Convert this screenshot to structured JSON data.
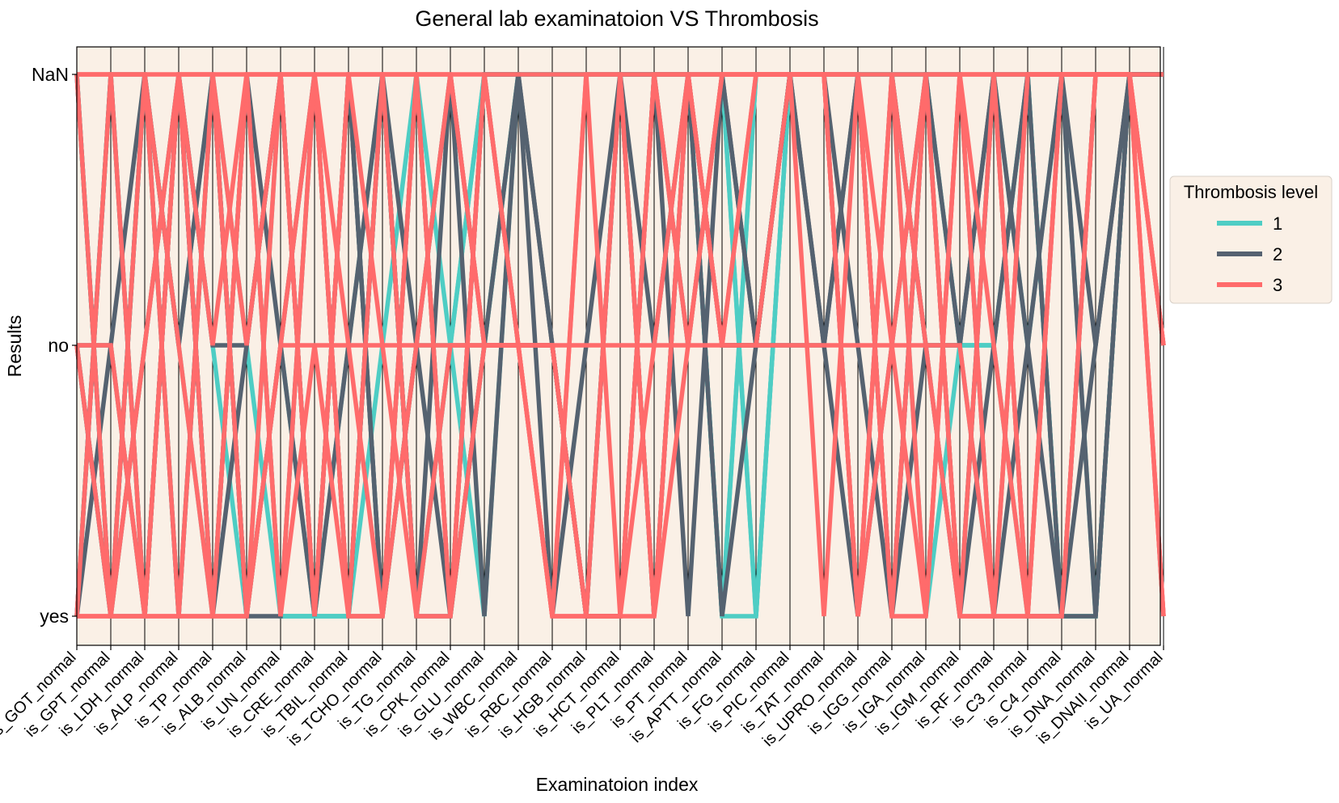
{
  "chart_data": {
    "type": "line",
    "subtype": "parallel-coordinates",
    "title": "General lab examinatoion VS Thrombosis",
    "xlabel": "Examinatoion index",
    "ylabel": "Results",
    "categories": [
      "is_GOT_normal",
      "is_GPT_normal",
      "is_LDH_normal",
      "is_ALP_normal",
      "is_TP_normal",
      "is_ALB_normal",
      "is_UN_normal",
      "is_CRE_normal",
      "is_TBIL_normal",
      "is_TCHO_normal",
      "is_TG_normal",
      "is_CPK_normal",
      "is_GLU_normal",
      "is_WBC_normal",
      "is_RBC_normal",
      "is_HGB_normal",
      "is_HCT_normal",
      "is_PLT_normal",
      "is_PT_normal",
      "is_APTT_normal",
      "is_FG_normal",
      "is_PIC_normal",
      "is_TAT_normal",
      "is_UPRO_normal",
      "is_IGG_normal",
      "is_IGA_normal",
      "is_IGM_normal",
      "is_RF_normal",
      "is_C3_normal",
      "is_C4_normal",
      "is_DNA_normal",
      "is_DNAII_normal",
      "is_UA_normal"
    ],
    "y_levels": [
      "yes",
      "no",
      "NaN"
    ],
    "legend": {
      "title": "Thrombosis level",
      "placement": "right"
    },
    "background_color": "#faf0e6",
    "grid": "vertical lines at each category",
    "series": [
      {
        "name": "1",
        "color": "#4ecdc4",
        "lines": [
          [
            2,
            0,
            2,
            1,
            0,
            2,
            0,
            0,
            0,
            1,
            2,
            0,
            1,
            2,
            2,
            2,
            2,
            2,
            2,
            0,
            0,
            2,
            2,
            2,
            2,
            2,
            1,
            0,
            2,
            0,
            0,
            2,
            2
          ],
          [
            0,
            2,
            0,
            2,
            1,
            0,
            2,
            0,
            0,
            0,
            2,
            1,
            2,
            2,
            2,
            2,
            2,
            2,
            2,
            2,
            0,
            2,
            2,
            2,
            2,
            2,
            1,
            1,
            2,
            0,
            0,
            2,
            2
          ],
          [
            1,
            0,
            2,
            0,
            2,
            1,
            0,
            0,
            1,
            2,
            0,
            1,
            0,
            2,
            2,
            2,
            2,
            0,
            2,
            0,
            2,
            2,
            2,
            2,
            2,
            1,
            1,
            1,
            0,
            2,
            0,
            2,
            2
          ],
          [
            0,
            2,
            2,
            1,
            2,
            0,
            1,
            0,
            0,
            2,
            0,
            1,
            1,
            2,
            2,
            2,
            2,
            0,
            2,
            2,
            0,
            2,
            2,
            2,
            2,
            0,
            1,
            1,
            2,
            0,
            2,
            2,
            2
          ],
          [
            2,
            0,
            0,
            2,
            0,
            2,
            0,
            0,
            2,
            0,
            1,
            1,
            2,
            2,
            2,
            2,
            2,
            2,
            2,
            0,
            2,
            2,
            2,
            2,
            2,
            2,
            0,
            2,
            1,
            2,
            2,
            2,
            2
          ]
        ]
      },
      {
        "name": "2",
        "color": "#556270",
        "lines": [
          [
            0,
            2,
            0,
            2,
            1,
            1,
            2,
            0,
            2,
            0,
            1,
            2,
            0,
            2,
            1,
            0,
            2,
            1,
            2,
            1,
            1,
            2,
            1,
            2,
            0,
            2,
            1,
            2,
            1,
            0,
            2,
            2,
            2
          ],
          [
            1,
            0,
            2,
            1,
            2,
            0,
            0,
            2,
            0,
            2,
            0,
            2,
            1,
            1,
            1,
            0,
            0,
            2,
            1,
            2,
            1,
            1,
            1,
            0,
            1,
            2,
            0,
            1,
            2,
            2,
            1,
            2,
            2
          ],
          [
            0,
            1,
            0,
            2,
            0,
            1,
            2,
            0,
            1,
            2,
            1,
            0,
            2,
            1,
            1,
            0,
            2,
            0,
            2,
            0,
            1,
            2,
            2,
            1,
            0,
            2,
            2,
            0,
            1,
            2,
            0,
            2,
            2
          ],
          [
            1,
            1,
            2,
            0,
            2,
            0,
            1,
            2,
            0,
            2,
            0,
            0,
            2,
            2,
            1,
            0,
            0,
            2,
            0,
            2,
            1,
            2,
            1,
            2,
            0,
            1,
            1,
            2,
            0,
            0,
            1,
            2,
            2
          ],
          [
            2,
            0,
            1,
            2,
            0,
            2,
            1,
            0,
            2,
            0,
            2,
            0,
            1,
            2,
            0,
            1,
            2,
            2,
            2,
            1,
            1,
            2,
            2,
            0,
            2,
            1,
            0,
            2,
            2,
            0,
            0,
            2,
            2
          ]
        ]
      },
      {
        "name": "3",
        "color": "#ff6b6b",
        "lines": [
          [
            0,
            0,
            2,
            1,
            0,
            2,
            0,
            1,
            0,
            0,
            1,
            2,
            1,
            1,
            0,
            2,
            2,
            0,
            1,
            2,
            2,
            2,
            2,
            0,
            1,
            0,
            2,
            0,
            0,
            2,
            2,
            2,
            1
          ],
          [
            2,
            2,
            0,
            0,
            2,
            1,
            2,
            0,
            2,
            1,
            0,
            0,
            1,
            1,
            1,
            0,
            0,
            2,
            2,
            1,
            1,
            2,
            2,
            2,
            1,
            2,
            0,
            2,
            0,
            0,
            2,
            2,
            0
          ],
          [
            1,
            0,
            1,
            2,
            0,
            0,
            2,
            2,
            0,
            2,
            2,
            0,
            2,
            1,
            0,
            0,
            2,
            0,
            2,
            1,
            2,
            2,
            2,
            0,
            2,
            0,
            2,
            2,
            0,
            2,
            2,
            2,
            1
          ],
          [
            2,
            0,
            0,
            2,
            2,
            0,
            1,
            2,
            0,
            0,
            2,
            2,
            1,
            1,
            0,
            0,
            0,
            1,
            2,
            1,
            2,
            2,
            2,
            2,
            0,
            2,
            0,
            0,
            2,
            2,
            2,
            2,
            0
          ],
          [
            0,
            2,
            2,
            0,
            0,
            2,
            2,
            0,
            2,
            2,
            0,
            1,
            1,
            1,
            0,
            2,
            0,
            0,
            2,
            2,
            2,
            2,
            0,
            2,
            0,
            0,
            2,
            1,
            0,
            2,
            2,
            2,
            1
          ],
          [
            1,
            1,
            0,
            2,
            1,
            2,
            0,
            2,
            1,
            0,
            2,
            0,
            2,
            1,
            1,
            0,
            0,
            2,
            1,
            2,
            2,
            2,
            2,
            0,
            2,
            1,
            0,
            0,
            2,
            2,
            2,
            2,
            0
          ],
          [
            2,
            2,
            2,
            2,
            2,
            2,
            2,
            2,
            2,
            2,
            2,
            2,
            2,
            2,
            2,
            2,
            2,
            2,
            2,
            2,
            2,
            2,
            2,
            2,
            2,
            2,
            2,
            2,
            2,
            2,
            2,
            2,
            2
          ],
          [
            0,
            0,
            0,
            0,
            0,
            0,
            1,
            1,
            1,
            1,
            1,
            1,
            1,
            1,
            1,
            1,
            1,
            1,
            1,
            1,
            1,
            1,
            1,
            1,
            1,
            1,
            1,
            0,
            0,
            0,
            2,
            2,
            1
          ]
        ]
      }
    ]
  }
}
